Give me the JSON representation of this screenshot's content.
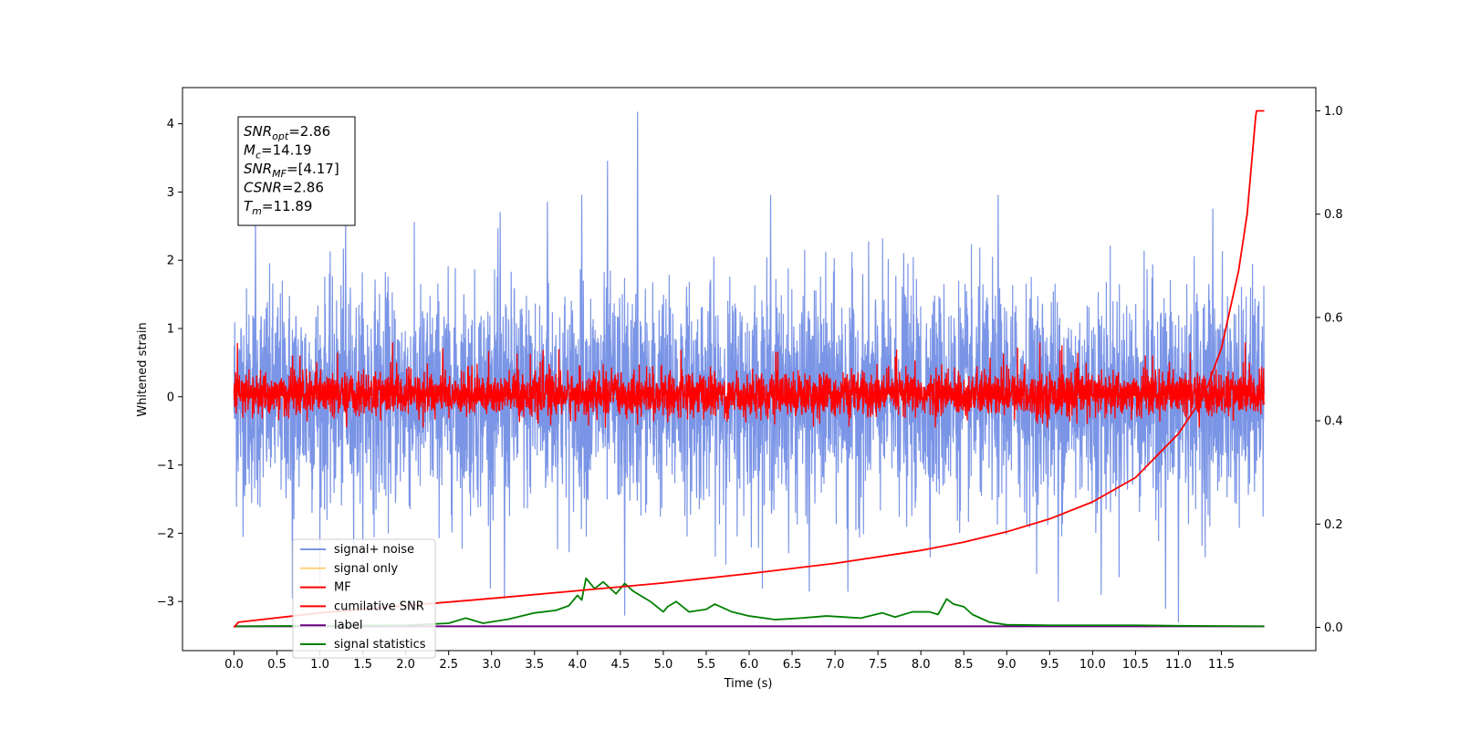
{
  "chart_data": {
    "type": "line",
    "xlabel": "Time (s)",
    "ylabel": "Whitened strain",
    "xlim": [
      -0.6,
      12.6
    ],
    "ylim": [
      -3.72,
      4.53
    ],
    "y2lim": [
      -0.045,
      1.045
    ],
    "x_ticks": [
      0.0,
      0.5,
      1.0,
      1.5,
      2.0,
      2.5,
      3.0,
      3.5,
      4.0,
      4.5,
      5.0,
      5.5,
      6.0,
      6.5,
      7.0,
      7.5,
      8.0,
      8.5,
      9.0,
      9.5,
      10.0,
      10.5,
      11.0,
      11.5
    ],
    "x_tick_labels": [
      "0.0",
      "0.5",
      "1.0",
      "1.5",
      "2.0",
      "2.5",
      "3.0",
      "3.5",
      "4.0",
      "4.5",
      "5.0",
      "5.5",
      "6.0",
      "6.5",
      "7.0",
      "7.5",
      "8.0",
      "8.5",
      "9.0",
      "9.5",
      "10.0",
      "10.5",
      "11.0",
      "11.5"
    ],
    "y_ticks": [
      -3,
      -2,
      -1,
      0,
      1,
      2,
      3,
      4
    ],
    "y_tick_labels": [
      "−3",
      "−2",
      "−1",
      "0",
      "1",
      "2",
      "3",
      "4"
    ],
    "y2_ticks": [
      0.0,
      0.2,
      0.4,
      0.6,
      0.8,
      1.0
    ],
    "y2_tick_labels": [
      "0.0",
      "0.2",
      "0.4",
      "0.6",
      "0.8",
      "1.0"
    ],
    "legend_position": "lower-left",
    "grid": false,
    "annotation": {
      "lines": [
        {
          "sym": "SNR",
          "sub": "opt",
          "value": "=2.86"
        },
        {
          "sym": "M",
          "sub": "c",
          "value": "=14.19"
        },
        {
          "sym": "SNR",
          "sub": "MF",
          "value": "=[4.17]"
        },
        {
          "sym": "CSNR",
          "sub": "",
          "value": "=2.86"
        },
        {
          "sym": "T",
          "sub": "m",
          "value": "=11.89"
        }
      ]
    },
    "series": [
      {
        "name": "signal+ noise",
        "color": "#7b95e6",
        "axis": "left",
        "t_range": [
          0.0,
          12.0
        ],
        "typical_band": [
          -1.7,
          1.9
        ],
        "min": -3.3,
        "max": 4.17,
        "peaks": [
          [
            4.7,
            4.17
          ],
          [
            4.35,
            3.45
          ],
          [
            4.05,
            2.95
          ],
          [
            8.9,
            2.95
          ],
          [
            6.25,
            2.95
          ],
          [
            7.8,
            2.1
          ],
          [
            11.4,
            2.75
          ],
          [
            0.25,
            2.75
          ],
          [
            3.65,
            2.85
          ],
          [
            1.3,
            2.65
          ],
          [
            3.1,
            2.7
          ],
          [
            3.15,
            -2.95
          ],
          [
            0.68,
            -2.95
          ],
          [
            6.7,
            -2.85
          ],
          [
            7.15,
            -2.85
          ],
          [
            9.6,
            -3.0
          ],
          [
            11.0,
            -3.3
          ],
          [
            10.85,
            -3.1
          ],
          [
            4.55,
            -3.2
          ],
          [
            10.1,
            -2.9
          ]
        ]
      },
      {
        "name": "signal only",
        "color": "#ffd27a",
        "axis": "left",
        "t_range": [
          0.0,
          12.0
        ],
        "values_note_hidden": true
      },
      {
        "name": "MF",
        "color": "#ff0000",
        "axis": "left",
        "t_range": [
          0.0,
          12.0
        ],
        "typical_band": [
          -0.38,
          0.55
        ],
        "min": -0.45,
        "max": 1.0
      },
      {
        "name": "cumilative SNR",
        "color": "#ff0000",
        "axis": "right",
        "x": [
          0.0,
          0.05,
          1.0,
          2.0,
          3.0,
          4.0,
          5.0,
          6.0,
          7.0,
          8.0,
          8.5,
          9.0,
          9.5,
          10.0,
          10.5,
          11.0,
          11.3,
          11.5,
          11.7,
          11.8,
          11.9,
          11.91,
          12.0
        ],
        "values": [
          0.0,
          0.01,
          0.028,
          0.042,
          0.056,
          0.071,
          0.086,
          0.104,
          0.124,
          0.149,
          0.165,
          0.185,
          0.21,
          0.243,
          0.29,
          0.375,
          0.45,
          0.54,
          0.69,
          0.8,
          0.99,
          1.0,
          1.0
        ]
      },
      {
        "name": "label",
        "color": "#6a0080",
        "axis": "right",
        "x": [
          0.0,
          12.0
        ],
        "values": [
          0.002,
          0.002
        ]
      },
      {
        "name": "signal statistics",
        "color": "#008000",
        "axis": "right",
        "x": [
          0.0,
          1.0,
          2.0,
          2.5,
          2.7,
          2.9,
          3.2,
          3.5,
          3.75,
          3.9,
          4.0,
          4.05,
          4.1,
          4.2,
          4.3,
          4.45,
          4.55,
          4.65,
          4.85,
          5.0,
          5.05,
          5.15,
          5.3,
          5.5,
          5.6,
          5.8,
          6.0,
          6.3,
          6.6,
          6.9,
          7.1,
          7.3,
          7.55,
          7.7,
          7.9,
          8.1,
          8.2,
          8.3,
          8.38,
          8.5,
          8.6,
          8.8,
          9.0,
          9.5,
          10.0,
          10.5,
          11.0,
          12.0
        ],
        "values": [
          0.002,
          0.003,
          0.004,
          0.008,
          0.018,
          0.008,
          0.016,
          0.028,
          0.033,
          0.042,
          0.062,
          0.053,
          0.095,
          0.075,
          0.088,
          0.065,
          0.085,
          0.07,
          0.05,
          0.03,
          0.04,
          0.05,
          0.03,
          0.035,
          0.045,
          0.03,
          0.022,
          0.015,
          0.018,
          0.022,
          0.02,
          0.018,
          0.028,
          0.02,
          0.03,
          0.03,
          0.025,
          0.055,
          0.045,
          0.04,
          0.025,
          0.01,
          0.005,
          0.004,
          0.004,
          0.004,
          0.003,
          0.002
        ]
      }
    ]
  }
}
